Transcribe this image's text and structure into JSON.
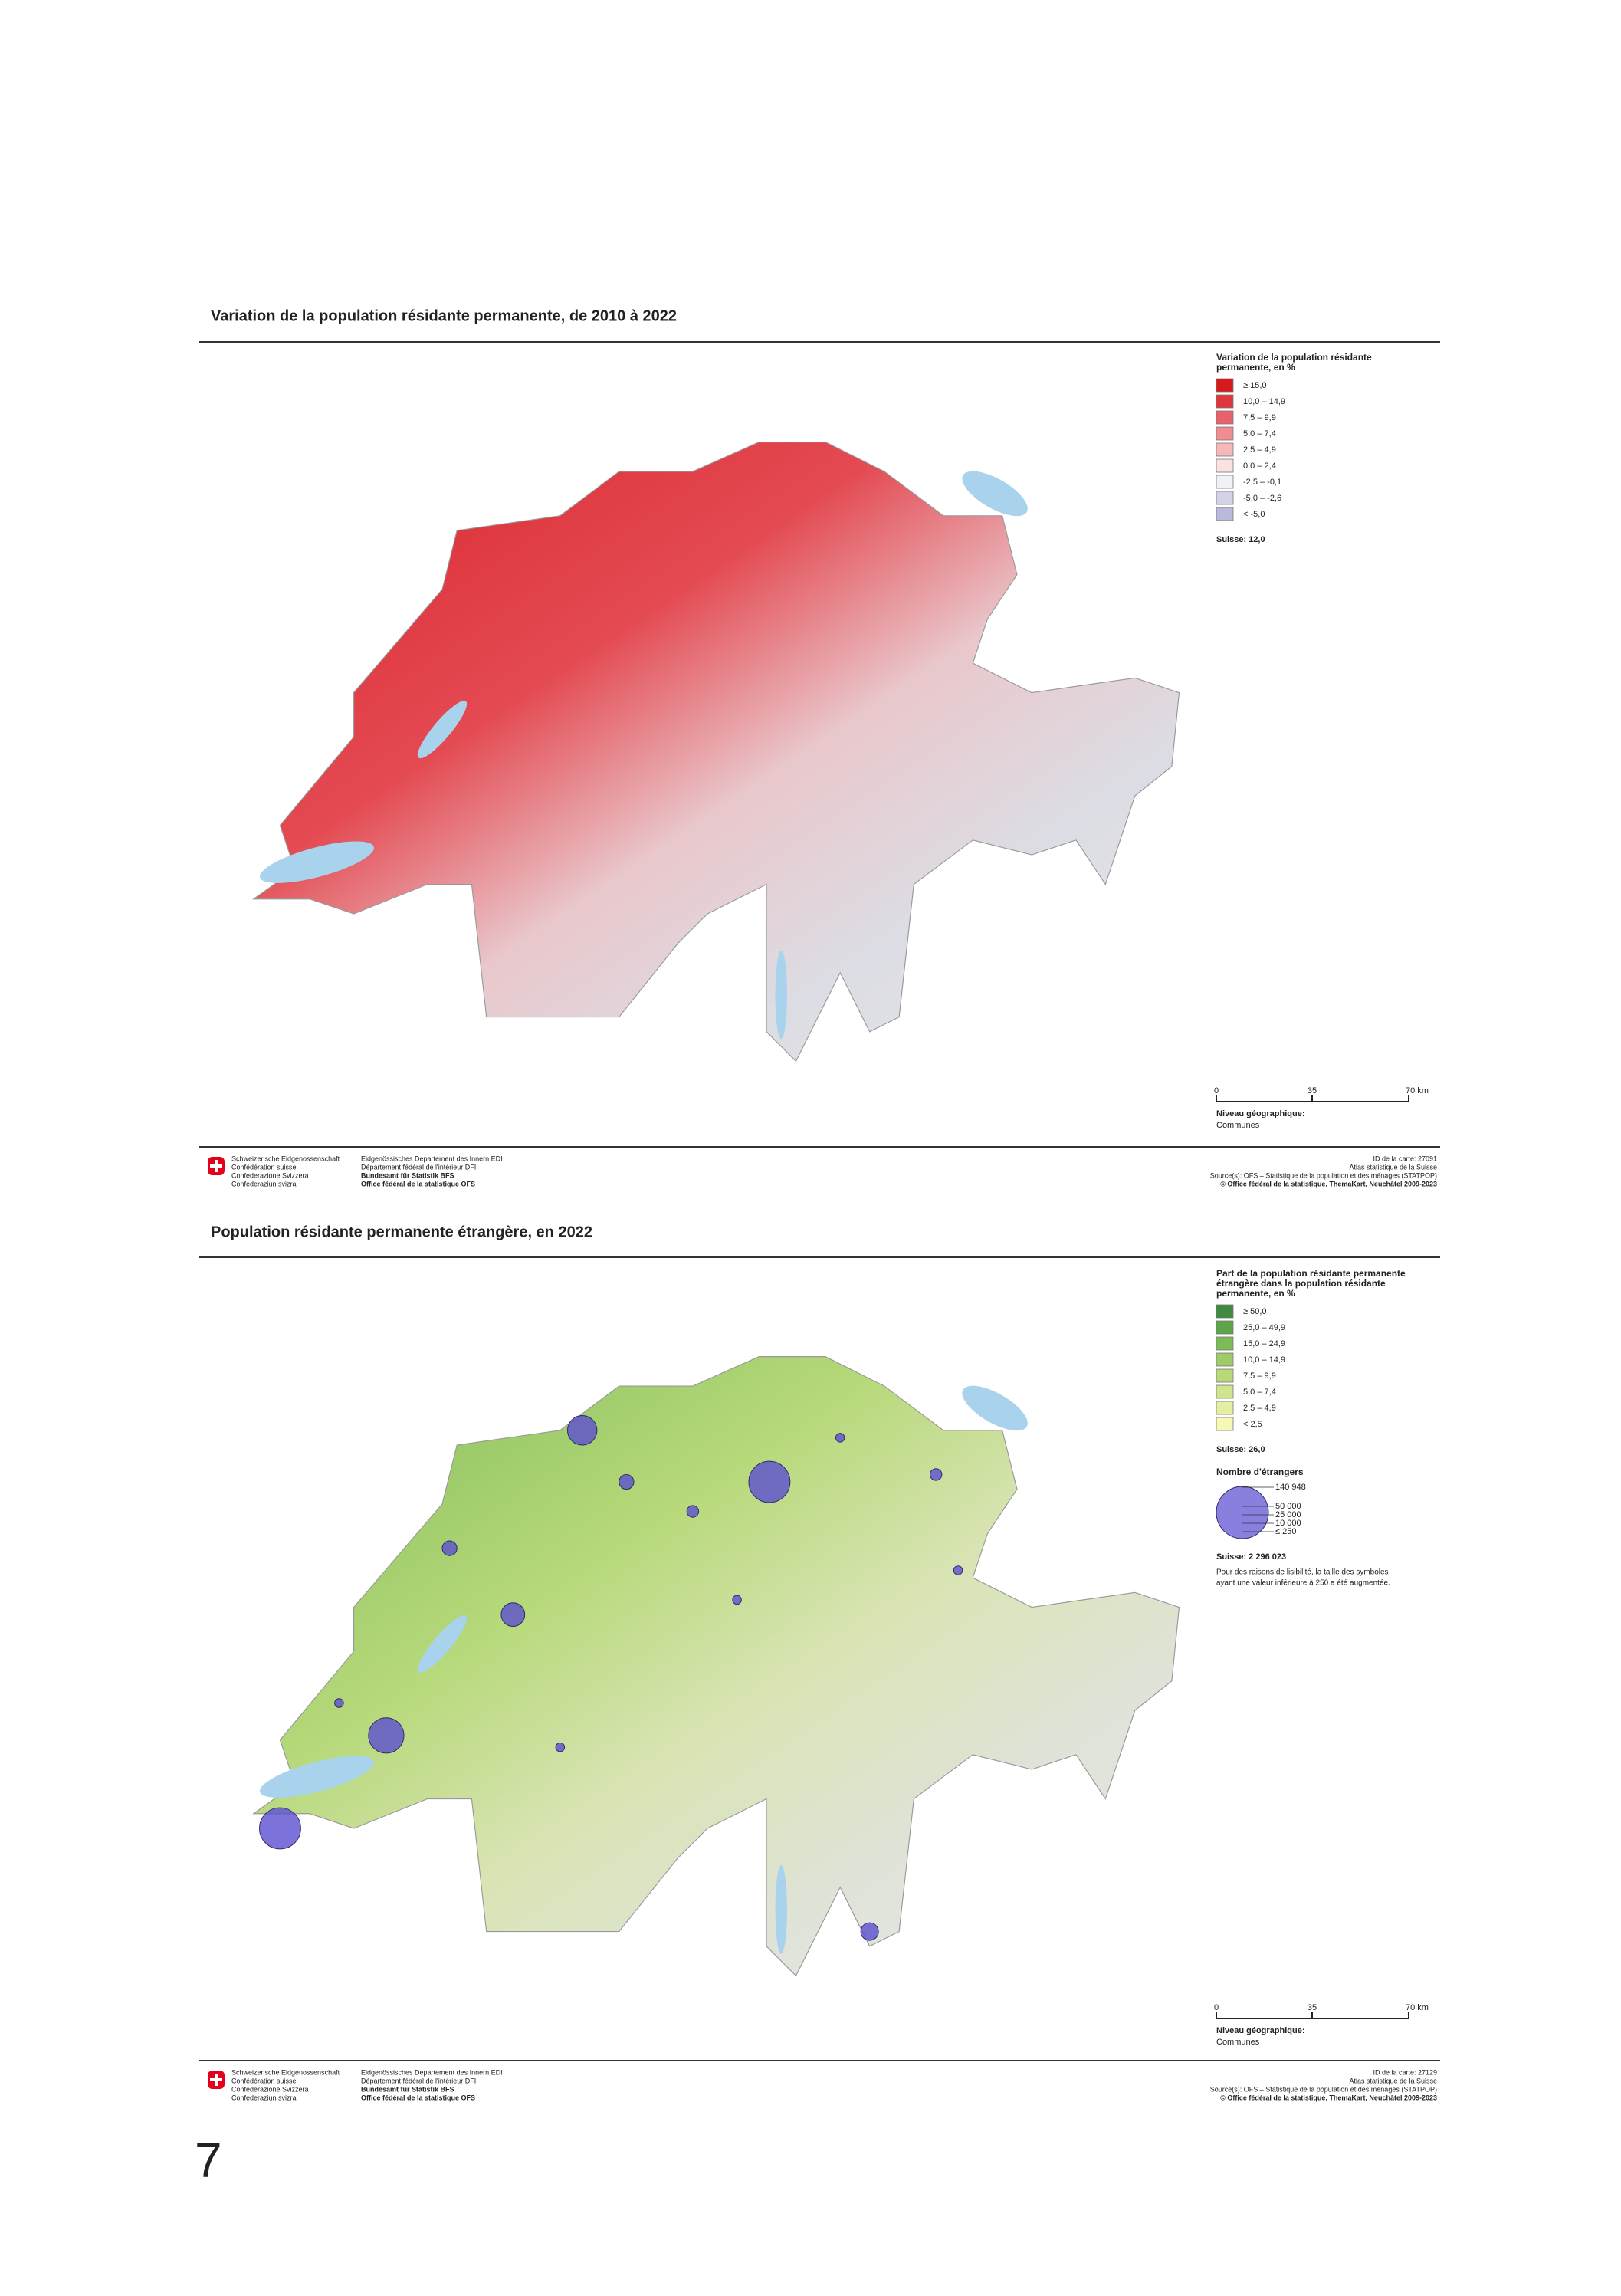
{
  "maps": [
    {
      "title": "Variation de la population résidante permanente, de 2010 à 2022",
      "legend": {
        "title_lines": [
          "Variation de la population résidante",
          "permanente, en %"
        ],
        "items": [
          {
            "label": "≥  15,0",
            "color": "#d7191c"
          },
          {
            "label": "10,0  –  14,9",
            "color": "#e1353d"
          },
          {
            "label": "7,5  –  9,9",
            "color": "#e9626a"
          },
          {
            "label": "5,0  –  7,4",
            "color": "#f08d93"
          },
          {
            "label": "2,5  –  4,9",
            "color": "#f6b8bb"
          },
          {
            "label": "0,0  –  2,4",
            "color": "#fbe1e2"
          },
          {
            "label": "-2,5  –  -0,1",
            "color": "#f1f1f6"
          },
          {
            "label": "-5,0  –  -2,6",
            "color": "#d3d3e7"
          },
          {
            "label": "<  -5,0",
            "color": "#b9b9d9"
          }
        ],
        "national": "Suisse: 12,0"
      },
      "scale": {
        "labels": [
          "0",
          "35",
          "70 km"
        ],
        "level_title": "Niveau géographique:",
        "level": "Communes"
      },
      "footer": {
        "left": [
          "Schweizerische Eidgenossenschaft",
          "Confédération suisse",
          "Confederazione Svizzera",
          "Confederaziun svizra"
        ],
        "middle": [
          "Eidgenössisches Departement des Innern EDI",
          "Département fédéral de l'intérieur DFI",
          "Bundesamt für Statistik BFS",
          "Office fédéral de la statistique OFS"
        ],
        "right": [
          "ID de la carte: 27091",
          "Atlas statistique de la Suisse",
          "Source(s): OFS – Statistique de la population et des ménages (STATPOP)",
          "© Office fédéral de la statistique, ThemaKart, Neuchâtel 2009-2023"
        ]
      }
    },
    {
      "title": "Population résidante permanente étrangère, en 2022",
      "legend": {
        "title_lines": [
          "Part de la population résidante permanente",
          "étrangère dans la population résidante",
          "permanente, en %"
        ],
        "items": [
          {
            "label": "≥  50,0",
            "color": "#3f8b3f"
          },
          {
            "label": "25,0  –  49,9",
            "color": "#5ca647"
          },
          {
            "label": "15,0  –  24,9",
            "color": "#7dbb57"
          },
          {
            "label": "10,0  –  14,9",
            "color": "#9dcb67"
          },
          {
            "label": "7,5  –  9,9",
            "color": "#b7d97a"
          },
          {
            "label": "5,0  –  7,4",
            "color": "#cfe48c"
          },
          {
            "label": "2,5  –  4,9",
            "color": "#e5efa1"
          },
          {
            "label": "<  2,5",
            "color": "#f7f7b6"
          }
        ],
        "national": "Suisse: 26,0",
        "bubbles": {
          "title": "Nombre d'étrangers",
          "labels": [
            "140 948",
            "50 000",
            "25 000",
            "10 000",
            "≤ 250"
          ],
          "national": "Suisse: 2 296 023",
          "note_lines": [
            "Pour des raisons de lisibilité, la taille des symboles",
            "ayant une valeur inférieure à 250 a été augmentée."
          ]
        }
      },
      "scale": {
        "labels": [
          "0",
          "35",
          "70 km"
        ],
        "level_title": "Niveau géographique:",
        "level": "Communes"
      },
      "footer": {
        "left": [
          "Schweizerische Eidgenossenschaft",
          "Confédération suisse",
          "Confederazione Svizzera",
          "Confederaziun svizra"
        ],
        "middle": [
          "Eidgenössisches Departement des Innern EDI",
          "Département fédéral de l'intérieur DFI",
          "Bundesamt für Statistik BFS",
          "Office fédéral de la statistique OFS"
        ],
        "right": [
          "ID de la carte: 27129",
          "Atlas statistique de la Suisse",
          "Source(s): OFS – Statistique de la population et des ménages (STATPOP)",
          "© Office fédéral de la statistique, ThemaKart, Neuchâtel 2009-2023"
        ]
      }
    }
  ],
  "page_number": "7"
}
